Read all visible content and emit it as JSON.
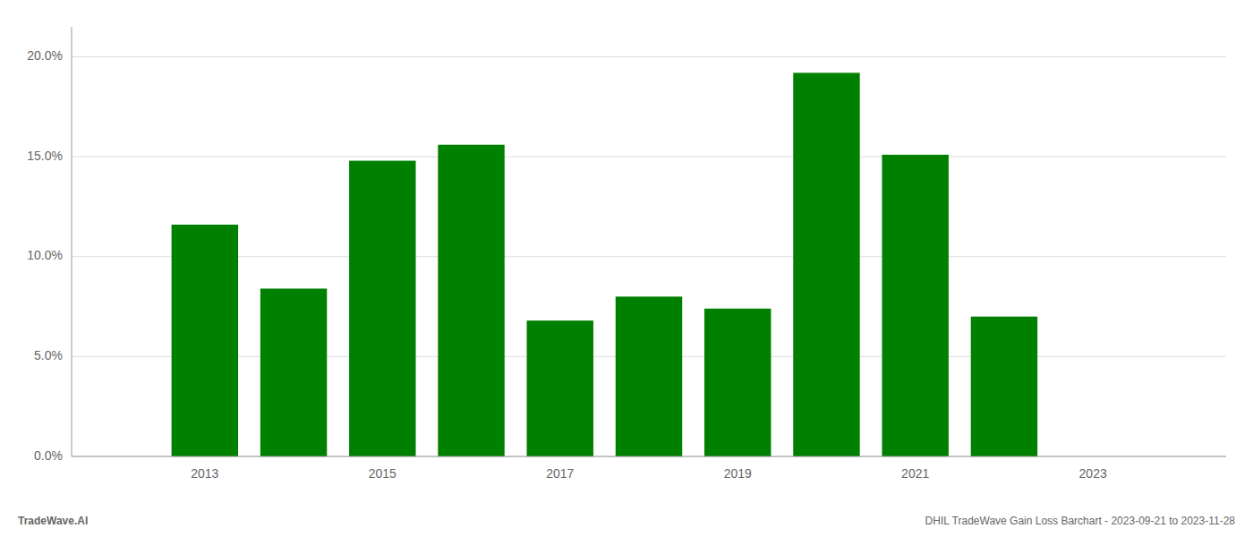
{
  "chart_data": {
    "type": "bar",
    "x": [
      2013,
      2014,
      2015,
      2016,
      2017,
      2018,
      2019,
      2020,
      2021,
      2022
    ],
    "values": [
      0.116,
      0.084,
      0.148,
      0.156,
      0.068,
      0.08,
      0.074,
      0.192,
      0.151,
      0.07
    ],
    "color": "#008000",
    "xlim": [
      2011.5,
      2024.5
    ],
    "xticks": [
      2013,
      2015,
      2017,
      2019,
      2021,
      2023
    ],
    "ylim": [
      0.0,
      0.215
    ],
    "yticks": [
      {
        "value": 0.0,
        "label": "0.0%"
      },
      {
        "value": 0.05,
        "label": "5.0%"
      },
      {
        "value": 0.1,
        "label": "10.0%"
      },
      {
        "value": 0.15,
        "label": "15.0%"
      },
      {
        "value": 0.2,
        "label": "20.0%"
      }
    ],
    "grid": true,
    "annotations": [
      "TradeWave.AI",
      "DHIL TradeWave Gain Loss Barchart - 2023-09-21 to 2023-11-28"
    ]
  }
}
